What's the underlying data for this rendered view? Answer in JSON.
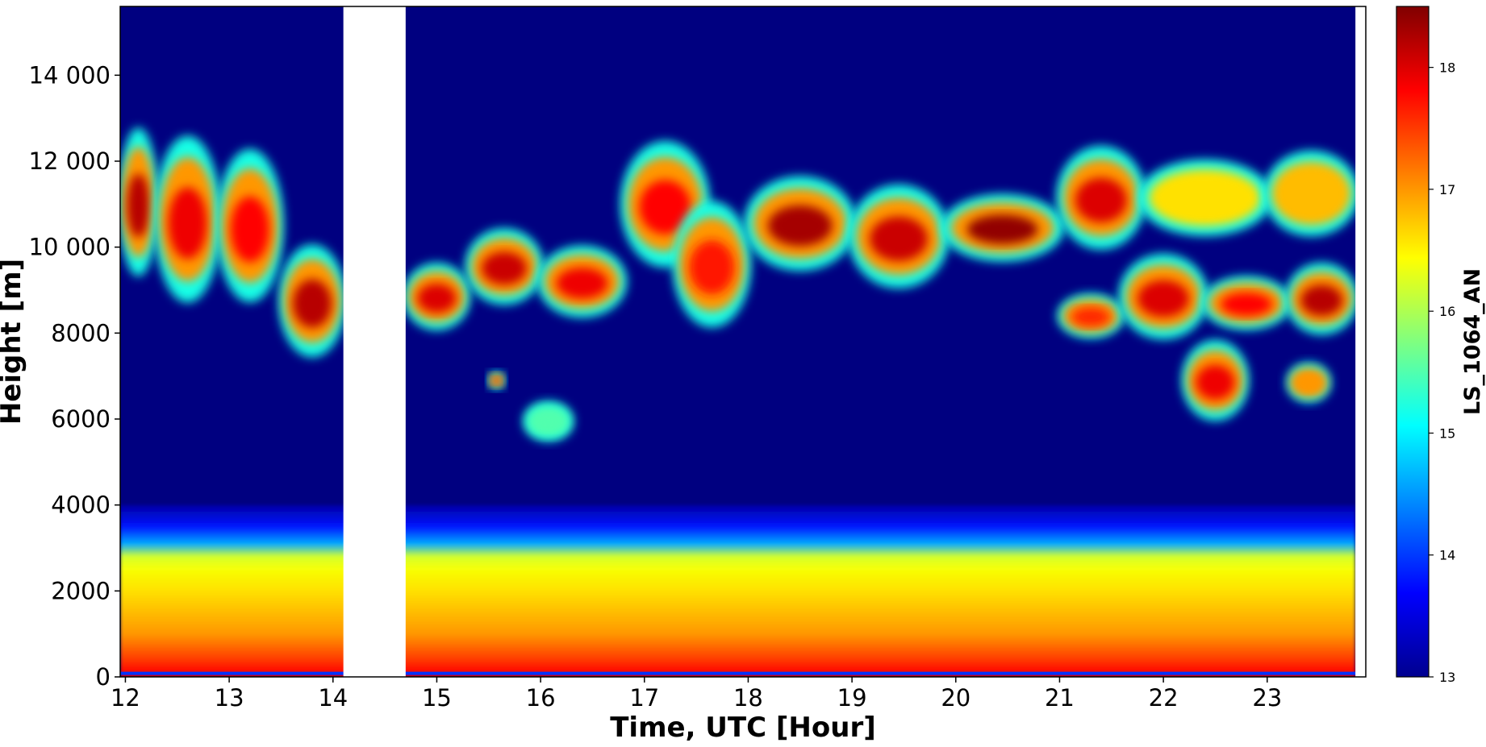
{
  "chart_data": {
    "type": "heatmap",
    "title": "",
    "xlabel": "Time, UTC [Hour]",
    "ylabel": "Height [m]",
    "xlim": [
      11.95,
      23.95
    ],
    "ylim": [
      0,
      15600
    ],
    "x_ticks": [
      12,
      13,
      14,
      15,
      16,
      17,
      18,
      19,
      20,
      21,
      22,
      23
    ],
    "x_tick_labels": [
      "12",
      "13",
      "14",
      "15",
      "16",
      "17",
      "18",
      "19",
      "20",
      "21",
      "22",
      "23"
    ],
    "y_ticks": [
      0,
      2000,
      4000,
      6000,
      8000,
      10000,
      12000,
      14000
    ],
    "y_tick_labels": [
      "0",
      "2000",
      "4000",
      "6000",
      "8000",
      "10 000",
      "12 000",
      "14 000"
    ],
    "colorbar": {
      "label": "LS_1064_AN",
      "range": [
        13,
        18.5
      ],
      "ticks": [
        13,
        14,
        15,
        16,
        17,
        18
      ],
      "tick_labels": [
        "13",
        "14",
        "15",
        "16",
        "17",
        "18"
      ],
      "colormap": "jet"
    },
    "data_gap": {
      "x_start": 14.1,
      "x_end": 14.7
    },
    "data_end_x": 23.85,
    "background_value": 13.0,
    "aerosol_layer": {
      "top_height_m": 3500,
      "profile": [
        {
          "height": 100,
          "value": 17.8
        },
        {
          "height": 400,
          "value": 17.5
        },
        {
          "height": 1000,
          "value": 17.0
        },
        {
          "height": 1500,
          "value": 16.8
        },
        {
          "height": 2000,
          "value": 16.6
        },
        {
          "height": 2500,
          "value": 16.4
        },
        {
          "height": 2800,
          "value": 16.2
        },
        {
          "height": 3100,
          "value": 14.6
        },
        {
          "height": 3500,
          "value": 13.8
        },
        {
          "height": 4000,
          "value": 13.2
        }
      ]
    },
    "cloud_layers": [
      {
        "x0": 11.95,
        "x1": 12.3,
        "bottom": 9400,
        "top": 12700,
        "core": 18.2
      },
      {
        "x0": 12.3,
        "x1": 12.9,
        "bottom": 8800,
        "top": 12500,
        "core": 17.9
      },
      {
        "x0": 12.9,
        "x1": 13.5,
        "bottom": 8800,
        "top": 12200,
        "core": 17.8
      },
      {
        "x0": 13.5,
        "x1": 14.1,
        "bottom": 7500,
        "top": 10000,
        "core": 18.2
      },
      {
        "x0": 14.7,
        "x1": 15.3,
        "bottom": 8100,
        "top": 9600,
        "core": 18.0
      },
      {
        "x0": 15.3,
        "x1": 16.0,
        "bottom": 8700,
        "top": 10400,
        "core": 18.1
      },
      {
        "x0": 16.0,
        "x1": 16.8,
        "bottom": 8400,
        "top": 10000,
        "core": 17.9
      },
      {
        "x0": 16.8,
        "x1": 17.6,
        "bottom": 9600,
        "top": 12400,
        "core": 17.8
      },
      {
        "x0": 17.3,
        "x1": 18.0,
        "bottom": 8200,
        "top": 11000,
        "core": 17.7
      },
      {
        "x0": 18.0,
        "x1": 19.0,
        "bottom": 9500,
        "top": 11600,
        "core": 18.3
      },
      {
        "x0": 19.0,
        "x1": 19.9,
        "bottom": 9100,
        "top": 11400,
        "core": 18.1
      },
      {
        "x0": 19.9,
        "x1": 21.0,
        "bottom": 9700,
        "top": 11200,
        "core": 18.4
      },
      {
        "x0": 21.0,
        "x1": 21.8,
        "bottom": 10000,
        "top": 12300,
        "core": 18.0
      },
      {
        "x0": 21.8,
        "x1": 23.0,
        "bottom": 10300,
        "top": 12000,
        "core": 16.6
      },
      {
        "x0": 23.0,
        "x1": 23.85,
        "bottom": 10300,
        "top": 12200,
        "core": 16.8
      },
      {
        "x0": 21.0,
        "x1": 21.6,
        "bottom": 7900,
        "top": 8900,
        "core": 17.6
      },
      {
        "x0": 21.6,
        "x1": 22.4,
        "bottom": 7900,
        "top": 9800,
        "core": 18.0
      },
      {
        "x0": 22.4,
        "x1": 23.2,
        "bottom": 8100,
        "top": 9300,
        "core": 17.8
      },
      {
        "x0": 23.2,
        "x1": 23.85,
        "bottom": 8000,
        "top": 9600,
        "core": 18.2
      },
      {
        "x0": 22.2,
        "x1": 22.8,
        "bottom": 6000,
        "top": 7800,
        "core": 17.9
      },
      {
        "x0": 23.2,
        "x1": 23.6,
        "bottom": 6400,
        "top": 7300,
        "core": 17.0
      },
      {
        "x0": 15.85,
        "x1": 16.3,
        "bottom": 5500,
        "top": 6400,
        "core": 15.5
      },
      {
        "x0": 15.5,
        "x1": 15.65,
        "bottom": 6700,
        "top": 7100,
        "core": 17.5
      }
    ]
  }
}
